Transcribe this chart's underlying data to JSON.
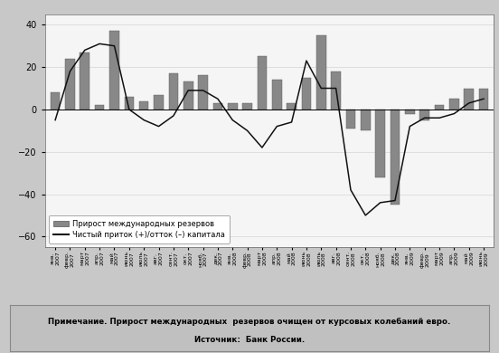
{
  "labels": [
    "янв.\n2007",
    "февр.\n2007",
    "март\n2007",
    "апр.\n2007",
    "май\n2007",
    "июнь\n2007",
    "июль\n2007",
    "авг.\n2007",
    "сент.\n2007",
    "окт.\n2007",
    "нояб.\n2007",
    "дек.\n2007",
    "янв.\n2008",
    "февр.\n2008",
    "март\n2008",
    "апр.\n2008",
    "май\n2008",
    "июнь\n2008",
    "июль\n2008",
    "авг.\n2008",
    "сент.\n2008",
    "окт.\n2008",
    "нояб.\n2008",
    "дек.\n2008",
    "янв.\n2009",
    "февр.\n2009",
    "март\n2009",
    "апр.\n2009",
    "май\n2009",
    "июнь\n2009"
  ],
  "bar_values": [
    8,
    24,
    27,
    2,
    37,
    6,
    4,
    7,
    17,
    13,
    16,
    3,
    3,
    3,
    25,
    14,
    3,
    15,
    35,
    18,
    -9,
    -10,
    -32,
    -45,
    -2,
    -5,
    2,
    5,
    10,
    10
  ],
  "line_values": [
    -5,
    18,
    28,
    31,
    30,
    0,
    -5,
    -8,
    -3,
    9,
    9,
    5,
    -5,
    -10,
    -18,
    -8,
    -6,
    23,
    10,
    10,
    -38,
    -50,
    -44,
    -43,
    -8,
    -4,
    -4,
    -2,
    3,
    5
  ],
  "bar_color": "#888888",
  "line_color": "#111111",
  "ylim": [
    -65,
    45
  ],
  "yticks": [
    -60,
    -40,
    -20,
    0,
    20,
    40
  ],
  "legend_bar_label": "Прирост международных резервов",
  "legend_line_label": "Чистый приток (+)/отток (–) капитала",
  "note_line1": "Примечание. Прирост международных  резервов очищен от курсовых колебаний евро.",
  "note_line2": "Источник:  Банк России.",
  "outer_bg": "#c8c8c8",
  "note_bg": "#c0c0c0",
  "plot_bg": "#f5f5f5"
}
